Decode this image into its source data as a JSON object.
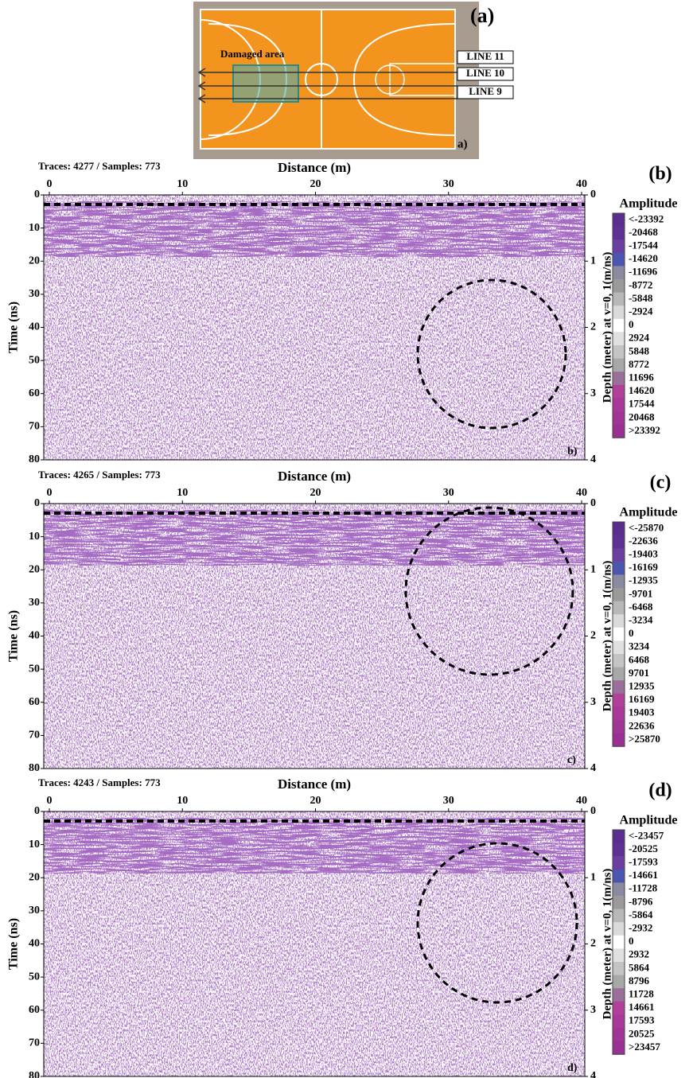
{
  "court": {
    "label": "(a)",
    "corner": "a)",
    "damaged": "Damaged area",
    "lines": [
      "LINE 11",
      "LINE 10",
      "LINE 9"
    ]
  },
  "panels": [
    {
      "label": "(b)",
      "corner": "b)",
      "header": "Traces: 4277 / Samples: 773",
      "xlabel": "Distance (m)",
      "ylabel": "Time (ns)",
      "y2label": "Depth (meter) at v=0, 1(m/ns)",
      "xticks": [
        0,
        10,
        20,
        30,
        40
      ],
      "yticks": [
        0,
        10,
        20,
        30,
        40,
        50,
        60,
        70,
        80
      ],
      "y2ticks": [
        0,
        1,
        2,
        3,
        4
      ],
      "legend_title": "Amplitude",
      "legend": [
        {
          "value": -23392,
          "label": "<-23392"
        },
        -20468,
        -17544,
        -14620,
        -11696,
        -8772,
        -5848,
        -2924,
        0,
        2924,
        5848,
        8772,
        11696,
        14620,
        17544,
        20468,
        {
          "value": 23392,
          "label": ">23392"
        }
      ]
    },
    {
      "label": "(c)",
      "corner": "c)",
      "header": "Traces: 4265 / Samples: 773",
      "xlabel": "Distance (m)",
      "ylabel": "Time (ns)",
      "y2label": "Depth (meter) at v=0, 1(m/ns)",
      "xticks": [
        0,
        10,
        20,
        30,
        40
      ],
      "yticks": [
        0,
        10,
        20,
        30,
        40,
        50,
        60,
        70,
        80
      ],
      "y2ticks": [
        0,
        1,
        2,
        3,
        4
      ],
      "legend_title": "Amplitude",
      "legend": [
        {
          "value": -25870,
          "label": "<-25870"
        },
        -22636,
        -19403,
        -16169,
        -12935,
        -9701,
        -6468,
        -3234,
        0,
        3234,
        6468,
        9701,
        12935,
        16169,
        19403,
        22636,
        {
          "value": 25870,
          "label": ">25870"
        }
      ]
    },
    {
      "label": "(d)",
      "corner": "d)",
      "header": "Traces: 4243 / Samples: 773",
      "xlabel": "Distance (m)",
      "ylabel": "Time (ns)",
      "y2label": "Depth (meter) at v=0, 1(m/ns)",
      "xticks": [
        0,
        10,
        20,
        30,
        40
      ],
      "yticks": [
        0,
        10,
        20,
        30,
        40,
        50,
        60,
        70,
        80
      ],
      "y2ticks": [
        0,
        1,
        2,
        3,
        4
      ],
      "legend_title": "Amplitude",
      "legend": [
        {
          "value": -23457,
          "label": "<-23457"
        },
        -20525,
        -17593,
        -14661,
        -11728,
        -8796,
        -5864,
        -2932,
        0,
        2932,
        5864,
        8796,
        11728,
        14661,
        17593,
        20525,
        {
          "value": 23457,
          "label": ">23457"
        }
      ]
    }
  ]
}
